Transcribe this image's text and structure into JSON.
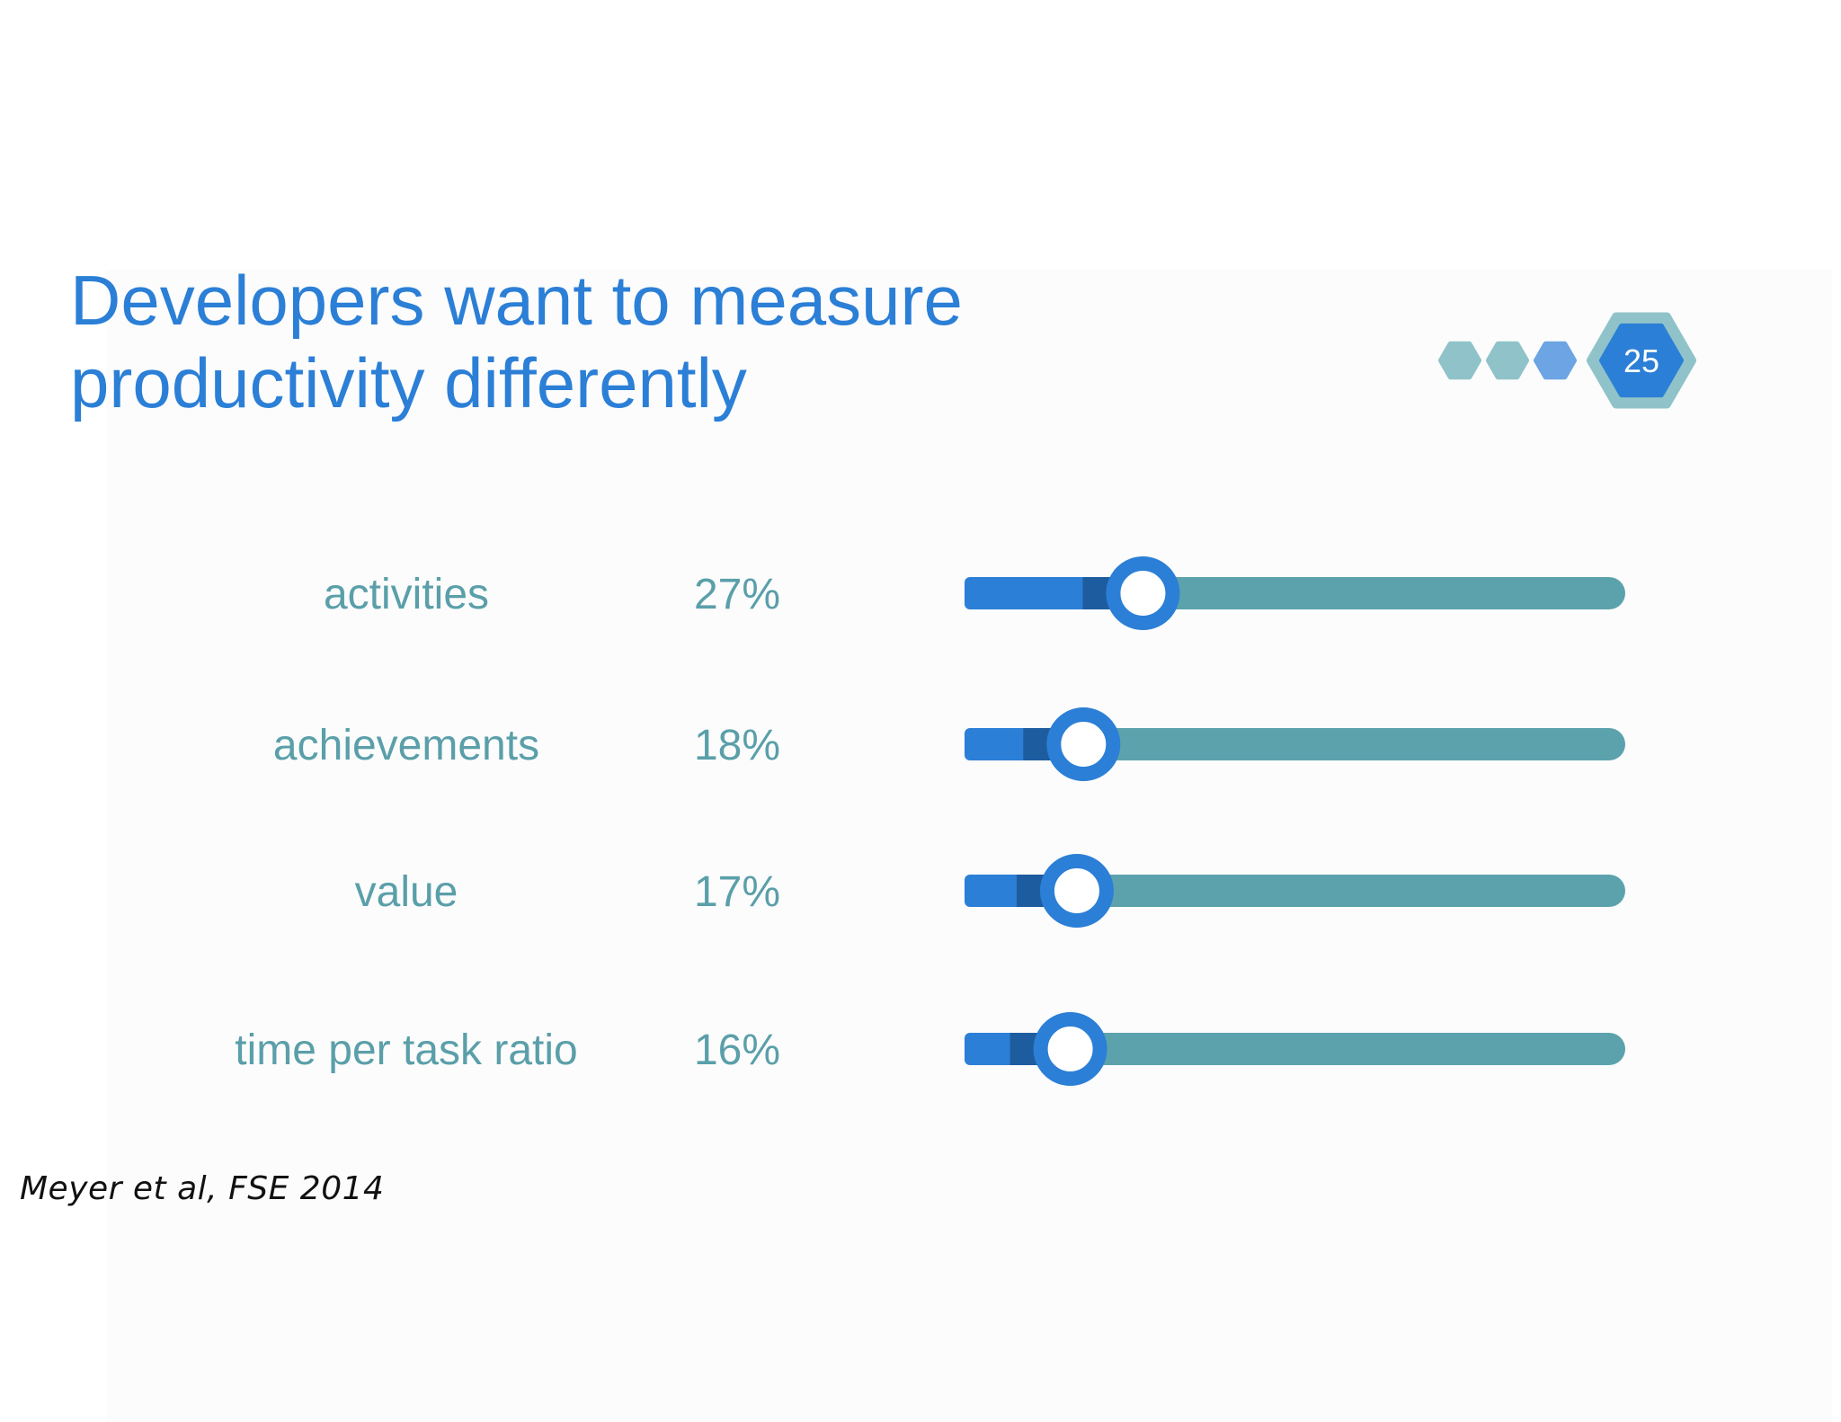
{
  "title": {
    "line1": "Developers want to measure",
    "line2": "productivity differently"
  },
  "slide_number": "25",
  "progress_dots": 3,
  "citation": "Meyer et al, FSE 2014",
  "colors": {
    "title": "#2b7fd6",
    "label": "#5a9fa9",
    "fill": "#2b7fd6",
    "fill_dark": "#1e5ca0",
    "track": "#5ba2ad",
    "dot_teal": "#8fc3c9",
    "dot_blue": "#6ca4e4",
    "hex_outer": "#8fc3c9",
    "hex_inner": "#2b7fd6"
  },
  "chart_data": {
    "type": "bar",
    "categories": [
      "activities",
      "achievements",
      "value",
      "time per task ratio"
    ],
    "values": [
      27,
      18,
      17,
      16
    ],
    "value_labels": [
      "27%",
      "18%",
      "17%",
      "16%"
    ],
    "ylim": [
      0,
      100
    ]
  }
}
